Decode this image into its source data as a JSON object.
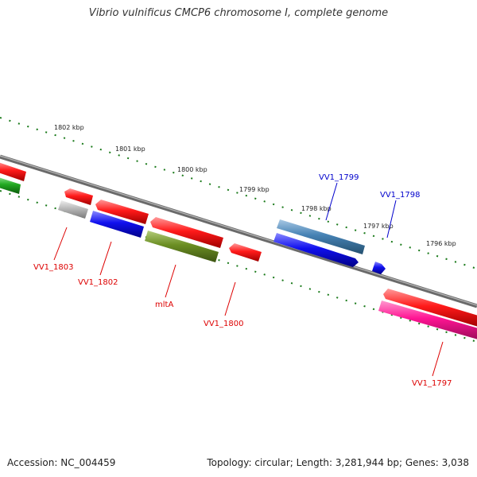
{
  "title": "Vibrio vulnificus CMCP6 chromosome I, complete genome",
  "footer": {
    "accession": "Accession: NC_004459",
    "summary": "Topology: circular; Length: 3,281,944 bp; Genes: 3,038"
  },
  "ticks": [
    "1802 kbp",
    "1801 kbp",
    "1800 kbp",
    "1799 kbp",
    "1798 kbp",
    "1797 kbp",
    "1796 kbp"
  ],
  "labels": {
    "vv1_1799": "VV1_1799",
    "vv1_1798": "VV1_1798",
    "vv1_1803": "VV1_1803",
    "vv1_1802": "VV1_1802",
    "mlta": "mltA",
    "vv1_1800": "VV1_1800",
    "vv1_1797": "VV1_1797"
  },
  "colors": {
    "backbone": "#808080",
    "tick": "#1a7a1a",
    "red": "#ff1a1a",
    "blue": "#1010ee",
    "steelblue": "#4682b4",
    "olive": "#6b8e23",
    "gray": "#b8b8b8",
    "green": "#22aa22",
    "pink": "#ff1493",
    "label_red": "#dd0000",
    "label_blue": "#0000cc"
  }
}
